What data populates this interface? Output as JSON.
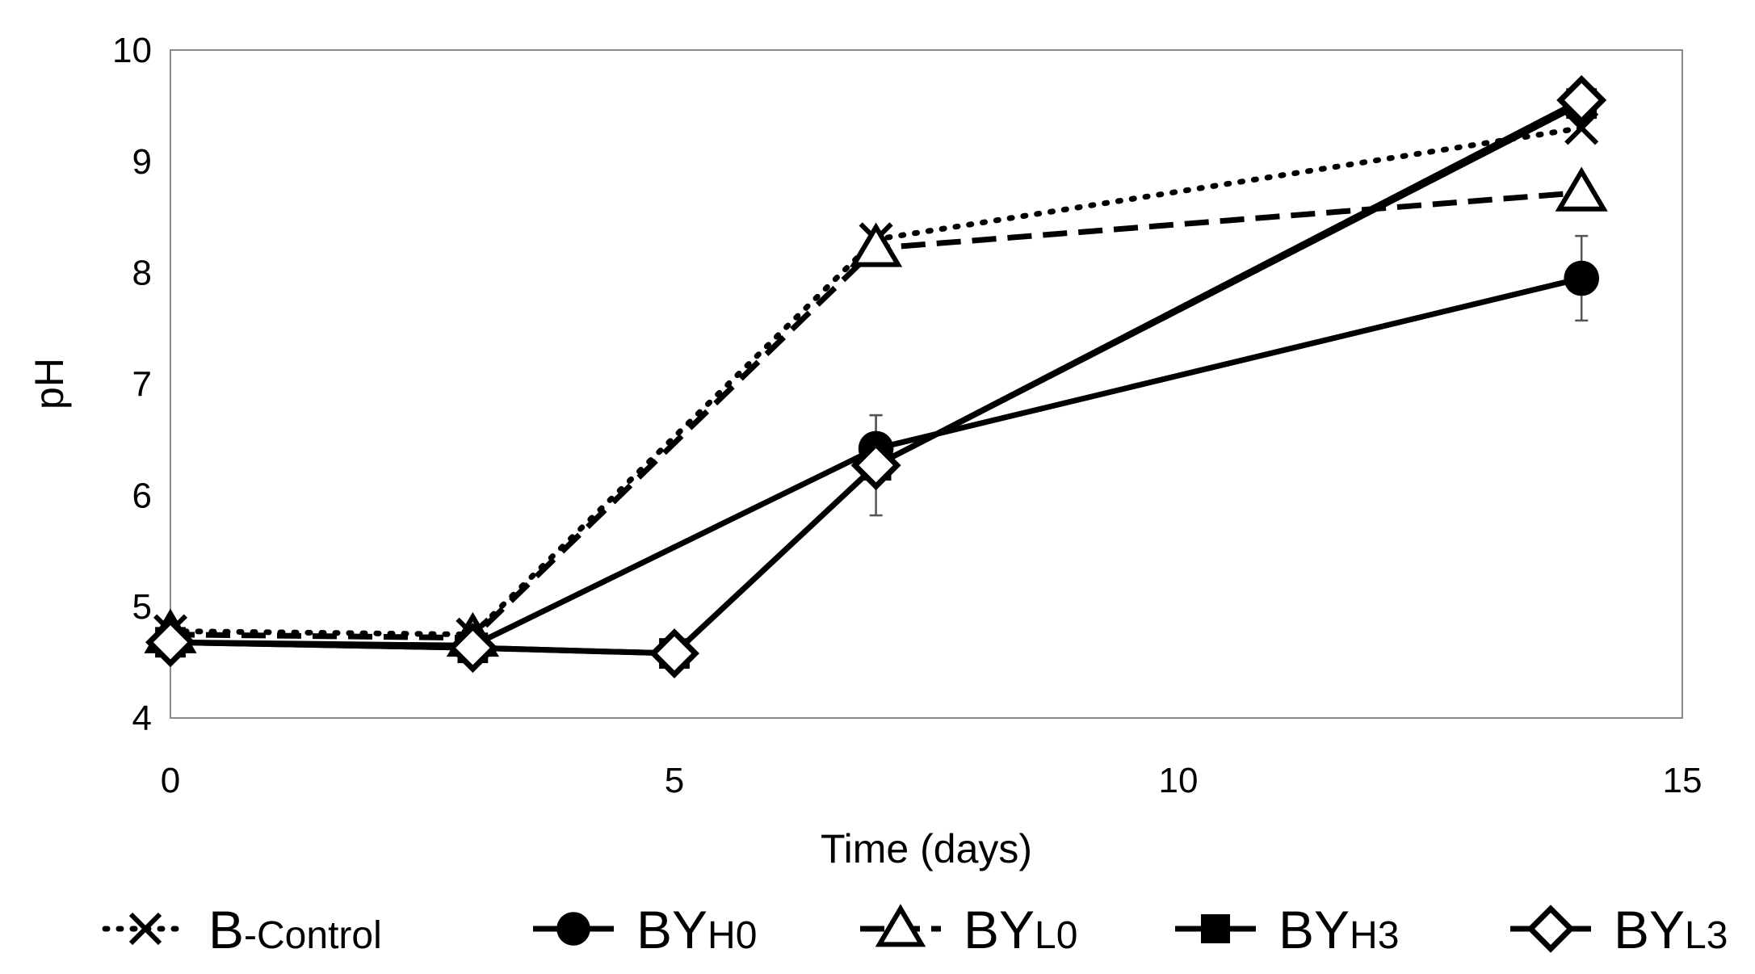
{
  "chart_data": {
    "type": "line",
    "title": "",
    "xlabel": "Time (days)",
    "ylabel": "pH",
    "xlim": [
      0,
      15
    ],
    "ylim": [
      4,
      10
    ],
    "xticks": [
      0,
      5,
      10,
      15
    ],
    "yticks": [
      4,
      5,
      6,
      7,
      8,
      9,
      10
    ],
    "xtick_labels": [
      "0",
      "5",
      "10",
      "15"
    ],
    "ytick_labels": [
      "4",
      "5",
      "6",
      "7",
      "8",
      "9",
      "10"
    ],
    "grid": false,
    "legend_position": "bottom",
    "series": [
      {
        "name": "B-Control",
        "legend_main": "B",
        "legend_sub": "-Control",
        "marker": "x",
        "line": "dotted",
        "x": [
          0,
          3,
          7,
          14
        ],
        "values": [
          4.78,
          4.75,
          8.3,
          9.3
        ]
      },
      {
        "name": "BYH0",
        "legend_main": "BY",
        "legend_sub": "H0",
        "marker": "circle",
        "line": "solid",
        "x": [
          0,
          3,
          7,
          14
        ],
        "values": [
          4.68,
          4.65,
          6.42,
          7.95
        ],
        "errors": [
          0,
          0,
          0.3,
          0.38
        ]
      },
      {
        "name": "BYL0",
        "legend_main": "BY",
        "legend_sub": "L0",
        "marker": "triangle",
        "line": "dashed",
        "x": [
          0,
          3,
          7,
          14
        ],
        "values": [
          4.75,
          4.72,
          8.22,
          8.72
        ]
      },
      {
        "name": "BYH3",
        "legend_main": "BY",
        "legend_sub": "H3",
        "marker": "square",
        "line": "solid",
        "x": [
          0,
          3,
          5,
          7,
          14
        ],
        "values": [
          4.68,
          4.63,
          4.58,
          6.27,
          9.52
        ]
      },
      {
        "name": "BYL3",
        "legend_main": "BY",
        "legend_sub": "L3",
        "marker": "diamond",
        "line": "solid",
        "x": [
          0,
          3,
          5,
          7,
          14
        ],
        "values": [
          4.68,
          4.63,
          4.58,
          6.27,
          9.55
        ],
        "errors": [
          0,
          0,
          0,
          0.45,
          0
        ]
      }
    ]
  }
}
